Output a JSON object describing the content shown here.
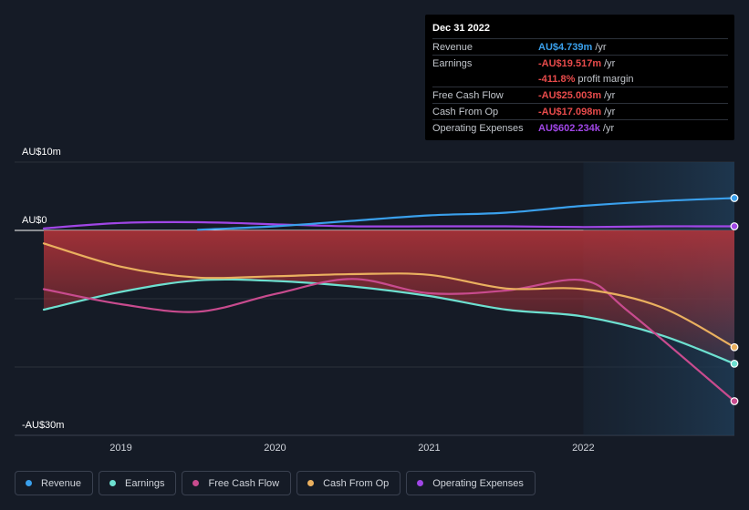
{
  "chart_data": {
    "type": "line",
    "title": "",
    "xlabel": "",
    "ylabel": "",
    "y_axis_labels": {
      "top": "AU$10m",
      "zero": "AU$0",
      "bottom": "-AU$30m"
    },
    "ylim": [
      -30,
      10
    ],
    "xlim": [
      2018.5,
      2022.98
    ],
    "x_ticks": [
      2019,
      2020,
      2021,
      2022
    ],
    "x_tick_labels": [
      "2019",
      "2020",
      "2021",
      "2022"
    ],
    "forecast_start": 2022.0,
    "series": [
      {
        "name": "Revenue",
        "color": "#3aa0ec",
        "points": [
          [
            2019.5,
            0.1
          ],
          [
            2020.0,
            0.6
          ],
          [
            2020.5,
            1.4
          ],
          [
            2021.0,
            2.2
          ],
          [
            2021.5,
            2.6
          ],
          [
            2022.0,
            3.6
          ],
          [
            2022.5,
            4.3
          ],
          [
            2022.98,
            4.739
          ]
        ]
      },
      {
        "name": "Earnings",
        "color": "#6de0d0",
        "points": [
          [
            2018.5,
            -11.6
          ],
          [
            2019.0,
            -9.0
          ],
          [
            2019.5,
            -7.3
          ],
          [
            2020.0,
            -7.4
          ],
          [
            2020.5,
            -8.2
          ],
          [
            2021.0,
            -9.6
          ],
          [
            2021.5,
            -11.6
          ],
          [
            2022.0,
            -12.6
          ],
          [
            2022.5,
            -15.3
          ],
          [
            2022.98,
            -19.517
          ]
        ]
      },
      {
        "name": "Free Cash Flow",
        "color": "#c84b8e",
        "points": [
          [
            2018.5,
            -8.6
          ],
          [
            2019.0,
            -10.8
          ],
          [
            2019.5,
            -11.9
          ],
          [
            2020.0,
            -9.3
          ],
          [
            2020.5,
            -7.1
          ],
          [
            2021.0,
            -9.2
          ],
          [
            2021.5,
            -8.8
          ],
          [
            2022.0,
            -7.3
          ],
          [
            2022.3,
            -12.0
          ],
          [
            2022.98,
            -25.003
          ]
        ]
      },
      {
        "name": "Cash From Op",
        "color": "#eab05f",
        "points": [
          [
            2018.5,
            -1.9
          ],
          [
            2019.0,
            -5.3
          ],
          [
            2019.5,
            -6.9
          ],
          [
            2020.0,
            -6.7
          ],
          [
            2020.5,
            -6.4
          ],
          [
            2021.0,
            -6.5
          ],
          [
            2021.5,
            -8.5
          ],
          [
            2022.0,
            -8.6
          ],
          [
            2022.5,
            -11.2
          ],
          [
            2022.98,
            -17.098
          ]
        ]
      },
      {
        "name": "Operating Expenses",
        "color": "#a046e6",
        "points": [
          [
            2018.5,
            0.3
          ],
          [
            2019.0,
            1.1
          ],
          [
            2019.5,
            1.2
          ],
          [
            2020.0,
            0.9
          ],
          [
            2020.5,
            0.6
          ],
          [
            2021.0,
            0.6
          ],
          [
            2021.5,
            0.6
          ],
          [
            2022.0,
            0.5
          ],
          [
            2022.5,
            0.6
          ],
          [
            2022.98,
            0.602
          ]
        ]
      }
    ]
  },
  "tooltip": {
    "date": "Dec 31 2022",
    "rows": [
      {
        "label": "Revenue",
        "value": "AU$4.739m",
        "unit": "/yr",
        "color": "#3aa0ec"
      },
      {
        "label": "Earnings",
        "value": "-AU$19.517m",
        "unit": "/yr",
        "color": "#e84b4b"
      },
      {
        "label": "",
        "value": "-411.8%",
        "unit": "profit margin",
        "color": "#e84b4b"
      },
      {
        "label": "Free Cash Flow",
        "value": "-AU$25.003m",
        "unit": "/yr",
        "color": "#e84b4b"
      },
      {
        "label": "Cash From Op",
        "value": "-AU$17.098m",
        "unit": "/yr",
        "color": "#e84b4b"
      },
      {
        "label": "Operating Expenses",
        "value": "AU$602.234k",
        "unit": "/yr",
        "color": "#a046e6"
      }
    ]
  },
  "legend": [
    {
      "label": "Revenue",
      "color": "#3aa0ec"
    },
    {
      "label": "Earnings",
      "color": "#6de0d0"
    },
    {
      "label": "Free Cash Flow",
      "color": "#c84b8e"
    },
    {
      "label": "Cash From Op",
      "color": "#eab05f"
    },
    {
      "label": "Operating Expenses",
      "color": "#a046e6"
    }
  ]
}
